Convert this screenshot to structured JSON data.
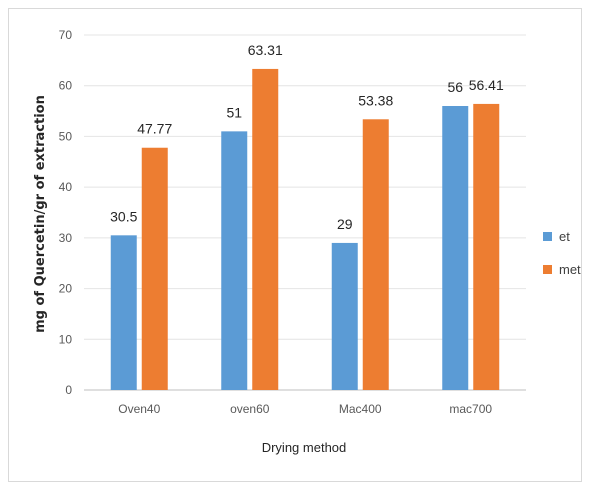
{
  "chart_data": {
    "type": "bar",
    "categories": [
      "Oven40",
      "oven60",
      "Mac400",
      "mac700"
    ],
    "series": [
      {
        "name": "et",
        "values": [
          30.5,
          51,
          29,
          56
        ],
        "labels": [
          "30.5",
          "51",
          "29",
          "56"
        ],
        "color": "#5b9bd5"
      },
      {
        "name": "met",
        "values": [
          47.77,
          63.31,
          53.38,
          56.41
        ],
        "labels": [
          "47.77",
          "63.31",
          "53.38",
          "56.41"
        ],
        "color": "#ed7d31"
      }
    ],
    "yticks": [
      "0",
      "10",
      "20",
      "30",
      "40",
      "50",
      "60",
      "70"
    ],
    "ylim": [
      0,
      70
    ],
    "xlabel": "Drying method",
    "ylabel": "mg of Quercetin/gr of extraction",
    "grid": true,
    "legend_position": "right"
  }
}
